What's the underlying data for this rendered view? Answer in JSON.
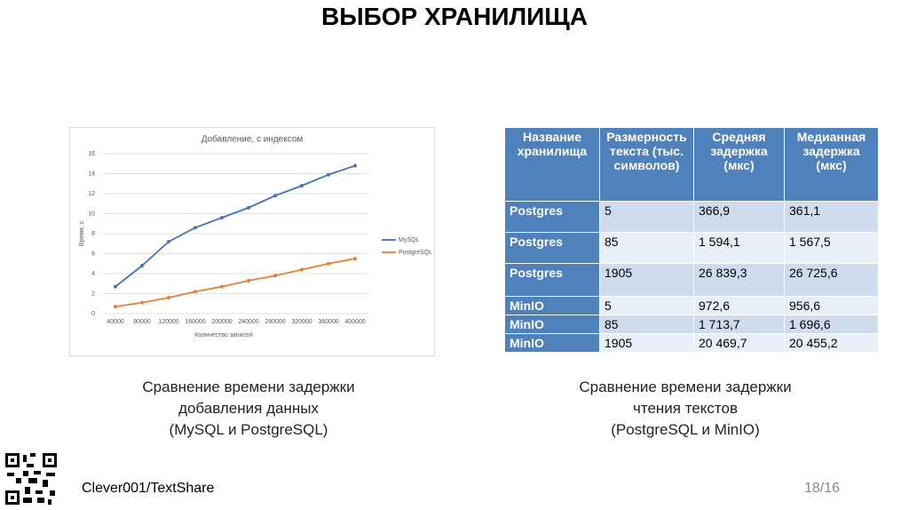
{
  "title": "ВЫБОР ХРАНИЛИЩА",
  "chart_data": {
    "type": "line",
    "title": "Добавление, с индексом",
    "x_label": "Количество записей",
    "y_label": "Время, с",
    "categories": [
      "40000",
      "80000",
      "120000",
      "160000",
      "200000",
      "240000",
      "280000",
      "320000",
      "360000",
      "400000"
    ],
    "series": [
      {
        "name": "MySQL",
        "color": "#4472c4",
        "values": [
          2.7,
          4.8,
          7.2,
          8.6,
          9.6,
          10.6,
          11.8,
          12.8,
          13.9,
          14.8
        ]
      },
      {
        "name": "PostgreSQL",
        "color": "#ed7d31",
        "values": [
          0.7,
          1.1,
          1.6,
          2.2,
          2.7,
          3.3,
          3.8,
          4.4,
          5.0,
          5.5
        ]
      }
    ],
    "ylim": [
      0,
      16
    ],
    "yticks": [
      0,
      2,
      4,
      6,
      8,
      10,
      12,
      14,
      16
    ],
    "grid": true,
    "legend": "right"
  },
  "table": {
    "header": [
      "Название хранилища",
      "Размерность текста (тыс. символов)",
      "Средняя задержка (мкс)",
      "Медианная задержка (мкс)"
    ],
    "rows": [
      [
        "Postgres",
        "5",
        "366,9",
        "361,1"
      ],
      [
        "Postgres",
        "85",
        "1 594,1",
        "1 567,5"
      ],
      [
        "Postgres",
        "1905",
        "26 839,3",
        "26 725,6"
      ],
      [
        "MinIO",
        "5",
        "972,6",
        "956,6"
      ],
      [
        "MinIO",
        "85",
        "1 713,7",
        "1 696,6"
      ],
      [
        "MinIO",
        "1905",
        "20 469,7",
        "20 455,2"
      ]
    ]
  },
  "captions": [
    "Сравнение времени задержки\nдобавления данных\n(MySQL и PostgreSQL)",
    "Сравнение времени задержки\nчтения текстов\n(PostgreSQL и MinIO)"
  ],
  "footer": {
    "repo": "Clever001/TextShare",
    "page": "18/16"
  }
}
